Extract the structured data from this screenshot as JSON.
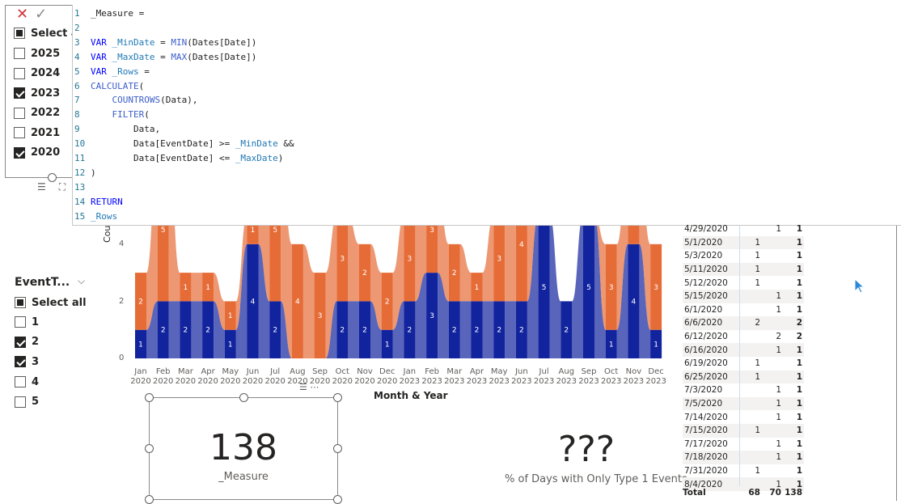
{
  "formula_bar": {
    "cancel_glyph": "✕",
    "commit_glyph": "✓"
  },
  "year_slicer": {
    "select_all": "Select all",
    "items": [
      {
        "label": "2025",
        "checked": false
      },
      {
        "label": "2024",
        "checked": false
      },
      {
        "label": "2023",
        "checked": true
      },
      {
        "label": "2022",
        "checked": false
      },
      {
        "label": "2021",
        "checked": false
      },
      {
        "label": "2020",
        "checked": true
      }
    ]
  },
  "editor": {
    "lines": [
      {
        "n": "1",
        "text": "_Measure ="
      },
      {
        "n": "2",
        "text": ""
      },
      {
        "n": "3",
        "text": "VAR _MinDate = MIN(Dates[Date])"
      },
      {
        "n": "4",
        "text": "VAR _MaxDate = MAX(Dates[Date])"
      },
      {
        "n": "5",
        "text": "VAR _Rows ="
      },
      {
        "n": "6",
        "text": "CALCULATE("
      },
      {
        "n": "7",
        "text": "    COUNTROWS(Data),"
      },
      {
        "n": "8",
        "text": "    FILTER("
      },
      {
        "n": "9",
        "text": "        Data,"
      },
      {
        "n": "10",
        "text": "        Data[EventDate] >= _MinDate &&"
      },
      {
        "n": "11",
        "text": "        Data[EventDate] <= _MaxDate)"
      },
      {
        "n": "12",
        "text": ")"
      },
      {
        "n": "13",
        "text": ""
      },
      {
        "n": "14",
        "text": "RETURN"
      },
      {
        "n": "15",
        "text": "_Rows"
      }
    ]
  },
  "event_slicer": {
    "title": "EventT...",
    "select_all": "Select all",
    "items": [
      {
        "label": "1",
        "checked": false
      },
      {
        "label": "2",
        "checked": true
      },
      {
        "label": "3",
        "checked": true
      },
      {
        "label": "4",
        "checked": false
      },
      {
        "label": "5",
        "checked": false
      }
    ]
  },
  "chart_data": {
    "type": "area",
    "title": "",
    "xlabel": "Month & Year",
    "ylabel": "Cou",
    "y_ticks": [
      "0",
      "2",
      "4"
    ],
    "categories": [
      [
        "Jan",
        "2020"
      ],
      [
        "Feb",
        "2020"
      ],
      [
        "Mar",
        "2020"
      ],
      [
        "Apr",
        "2020"
      ],
      [
        "May",
        "2020"
      ],
      [
        "Jun",
        "2020"
      ],
      [
        "Jul",
        "2020"
      ],
      [
        "Aug",
        "2020"
      ],
      [
        "Sep",
        "2020"
      ],
      [
        "Oct",
        "2020"
      ],
      [
        "Nov",
        "2020"
      ],
      [
        "Dec",
        "2020"
      ],
      [
        "Jan",
        "2023"
      ],
      [
        "Feb",
        "2023"
      ],
      [
        "Mar",
        "2023"
      ],
      [
        "Apr",
        "2023"
      ],
      [
        "May",
        "2023"
      ],
      [
        "Jun",
        "2023"
      ],
      [
        "Jul",
        "2023"
      ],
      [
        "Aug",
        "2023"
      ],
      [
        "Sep",
        "2023"
      ],
      [
        "Oct",
        "2023"
      ],
      [
        "Nov",
        "2023"
      ],
      [
        "Dec",
        "2023"
      ]
    ],
    "series": [
      {
        "color": "#12239e",
        "values": [
          1,
          2,
          2,
          2,
          1,
          4,
          2,
          0,
          0,
          2,
          2,
          1,
          2,
          3,
          2,
          2,
          2,
          2,
          5,
          2,
          5,
          1,
          4,
          1
        ]
      },
      {
        "color": "#e66c37",
        "values": [
          2,
          5,
          1,
          1,
          1,
          1,
          5,
          4,
          3,
          3,
          2,
          2,
          3,
          3,
          2,
          1,
          3,
          4,
          0,
          0,
          0,
          3,
          3,
          3
        ]
      }
    ]
  },
  "card1": {
    "value": "138",
    "label": "_Measure"
  },
  "card2": {
    "value": "???",
    "label": "% of Days with Only Type 1 Events"
  },
  "table": {
    "rows": [
      {
        "date": "4/29/2020",
        "a": "",
        "b": "1",
        "t": "1"
      },
      {
        "date": "5/1/2020",
        "a": "1",
        "b": "",
        "t": "1"
      },
      {
        "date": "5/3/2020",
        "a": "1",
        "b": "",
        "t": "1"
      },
      {
        "date": "5/11/2020",
        "a": "1",
        "b": "",
        "t": "1"
      },
      {
        "date": "5/12/2020",
        "a": "1",
        "b": "",
        "t": "1"
      },
      {
        "date": "5/15/2020",
        "a": "",
        "b": "1",
        "t": "1"
      },
      {
        "date": "6/1/2020",
        "a": "",
        "b": "1",
        "t": "1"
      },
      {
        "date": "6/6/2020",
        "a": "2",
        "b": "",
        "t": "2"
      },
      {
        "date": "6/12/2020",
        "a": "",
        "b": "2",
        "t": "2"
      },
      {
        "date": "6/16/2020",
        "a": "",
        "b": "1",
        "t": "1"
      },
      {
        "date": "6/19/2020",
        "a": "1",
        "b": "",
        "t": "1"
      },
      {
        "date": "6/25/2020",
        "a": "1",
        "b": "",
        "t": "1"
      },
      {
        "date": "7/3/2020",
        "a": "",
        "b": "1",
        "t": "1"
      },
      {
        "date": "7/5/2020",
        "a": "",
        "b": "1",
        "t": "1"
      },
      {
        "date": "7/14/2020",
        "a": "",
        "b": "1",
        "t": "1"
      },
      {
        "date": "7/15/2020",
        "a": "1",
        "b": "",
        "t": "1"
      },
      {
        "date": "7/17/2020",
        "a": "",
        "b": "1",
        "t": "1"
      },
      {
        "date": "7/18/2020",
        "a": "",
        "b": "1",
        "t": "1"
      },
      {
        "date": "7/31/2020",
        "a": "1",
        "b": "",
        "t": "1"
      },
      {
        "date": "8/4/2020",
        "a": "",
        "b": "1",
        "t": "1"
      }
    ],
    "total": {
      "label": "Total",
      "a": "68",
      "b": "70",
      "t": "138"
    }
  }
}
